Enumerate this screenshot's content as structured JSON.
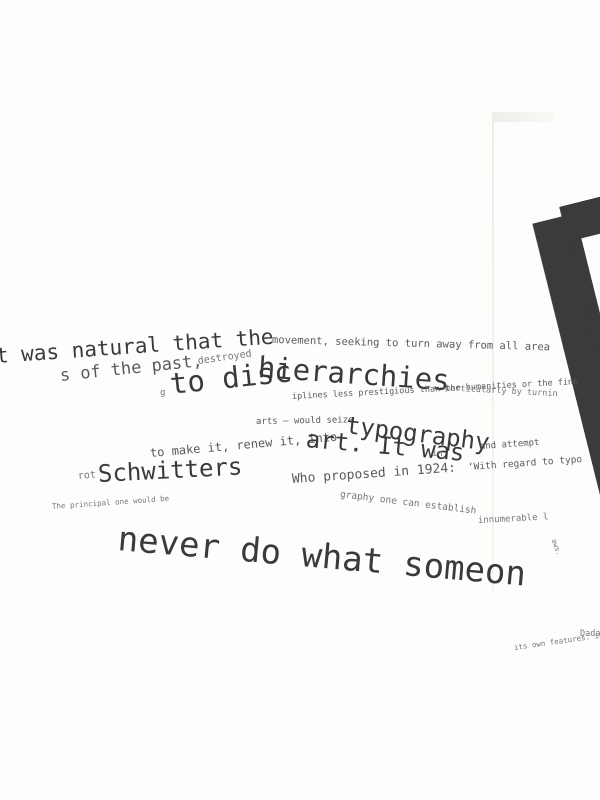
{
  "lines": {
    "l1a": "t was natural that the",
    "l1b": "movement, seeking to turn away from all area",
    "l2a": "s of the past,",
    "l2b": "destroyed",
    "l2c": "hierarchies",
    "l2d": "—particularly by turnin",
    "l3a": "g",
    "l3b": "to disc",
    "l3c": "iplines less prestigious than the humanities or the fine",
    "l4a": "arts – would seize",
    "l4b": "typography",
    "l4c": "and attempt",
    "l5a": "to make it, renew it, into",
    "l5b": "art. It was",
    "l5c": "in",
    "l6a": "rot",
    "l6b": "Schwitters",
    "l6c": "Who proposed in 1924:",
    "l6d": "‘With regard to typo",
    "l7a": "graphy one can establish",
    "l7b": "innumerable l",
    "l7c": "aws.",
    "l8a": "The principal one would be",
    "l9a": "never do what someon",
    "l10a": "Dada",
    "l10b": "its own features. its ot"
  }
}
